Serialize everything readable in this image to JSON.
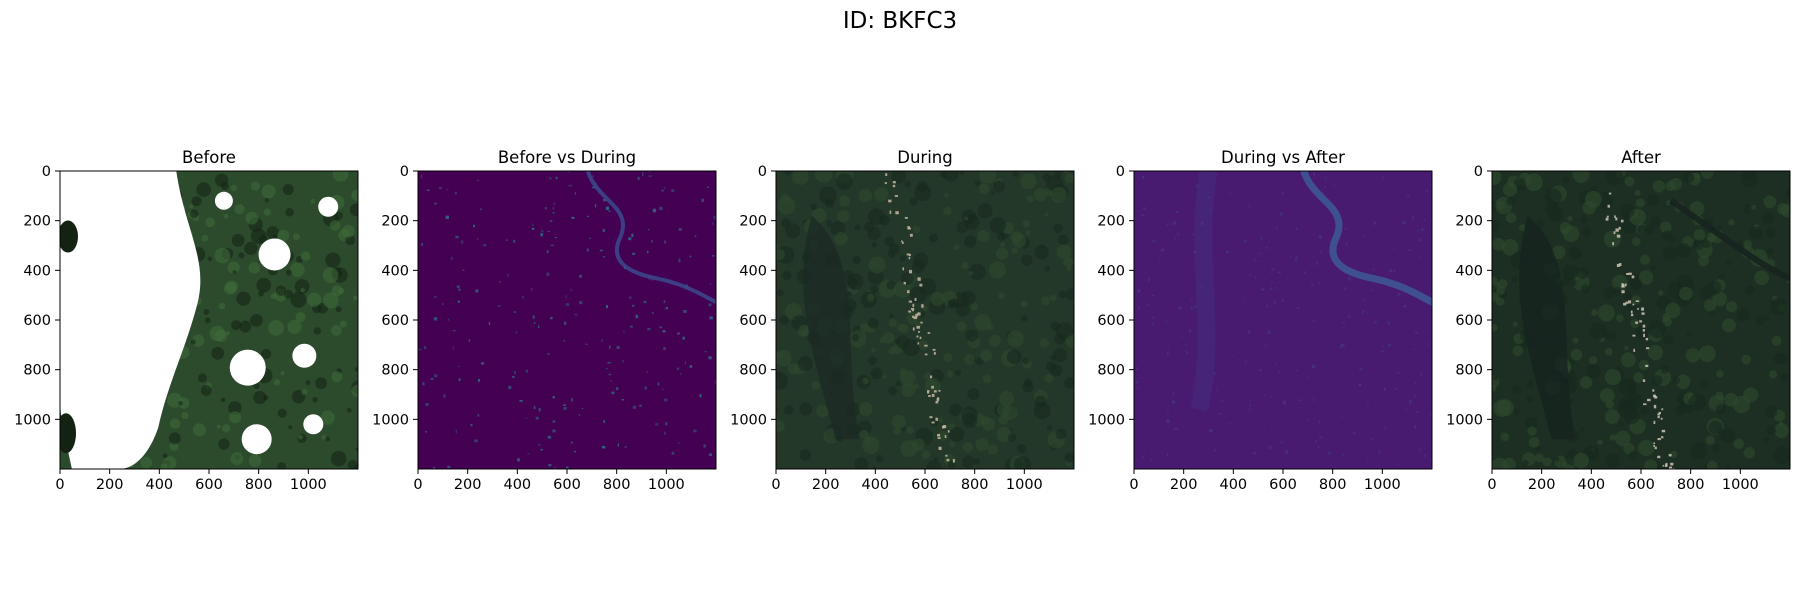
{
  "figure": {
    "title": "ID: BKFC3"
  },
  "chart_data": [
    {
      "type": "image",
      "title": "Before",
      "xlim": [
        0,
        1200
      ],
      "ylim": [
        1200,
        0
      ],
      "xticks": [
        0,
        200,
        400,
        600,
        800,
        1000
      ],
      "yticks": [
        0,
        200,
        400,
        600,
        800,
        1000
      ],
      "style": "rgb-cloudy",
      "colors": {
        "base": "#2c4a2c",
        "cloud": "#ffffff",
        "dark": "#142214"
      }
    },
    {
      "type": "image",
      "title": "Before vs During",
      "xlim": [
        0,
        1200
      ],
      "ylim": [
        1200,
        0
      ],
      "xticks": [
        0,
        200,
        400,
        600,
        800,
        1000
      ],
      "yticks": [
        0,
        200,
        400,
        600,
        800,
        1000
      ],
      "style": "difference",
      "colors": {
        "base": "#440154",
        "river": "#3b4a8c",
        "highlight": "#2d7f8e"
      }
    },
    {
      "type": "image",
      "title": "During",
      "xlim": [
        0,
        1200
      ],
      "ylim": [
        1200,
        0
      ],
      "xticks": [
        0,
        200,
        400,
        600,
        800,
        1000
      ],
      "yticks": [
        0,
        200,
        400,
        600,
        800,
        1000
      ],
      "style": "rgb",
      "colors": {
        "base": "#24382a",
        "water": "#1c2b26",
        "town": "#c9b9a3"
      }
    },
    {
      "type": "image",
      "title": "During vs After",
      "xlim": [
        0,
        1200
      ],
      "ylim": [
        1200,
        0
      ],
      "xticks": [
        0,
        200,
        400,
        600,
        800,
        1000
      ],
      "yticks": [
        0,
        200,
        400,
        600,
        800,
        1000
      ],
      "style": "difference-river",
      "colors": {
        "base": "#481a70",
        "river": "#3e5b95",
        "highlight": "#453a86"
      }
    },
    {
      "type": "image",
      "title": "After",
      "xlim": [
        0,
        1200
      ],
      "ylim": [
        1200,
        0
      ],
      "xticks": [
        0,
        200,
        400,
        600,
        800,
        1000
      ],
      "yticks": [
        0,
        200,
        400,
        600,
        800,
        1000
      ],
      "style": "rgb-dark",
      "colors": {
        "base": "#1d2e22",
        "water": "#17231f",
        "town": "#cfc4b4"
      }
    }
  ]
}
